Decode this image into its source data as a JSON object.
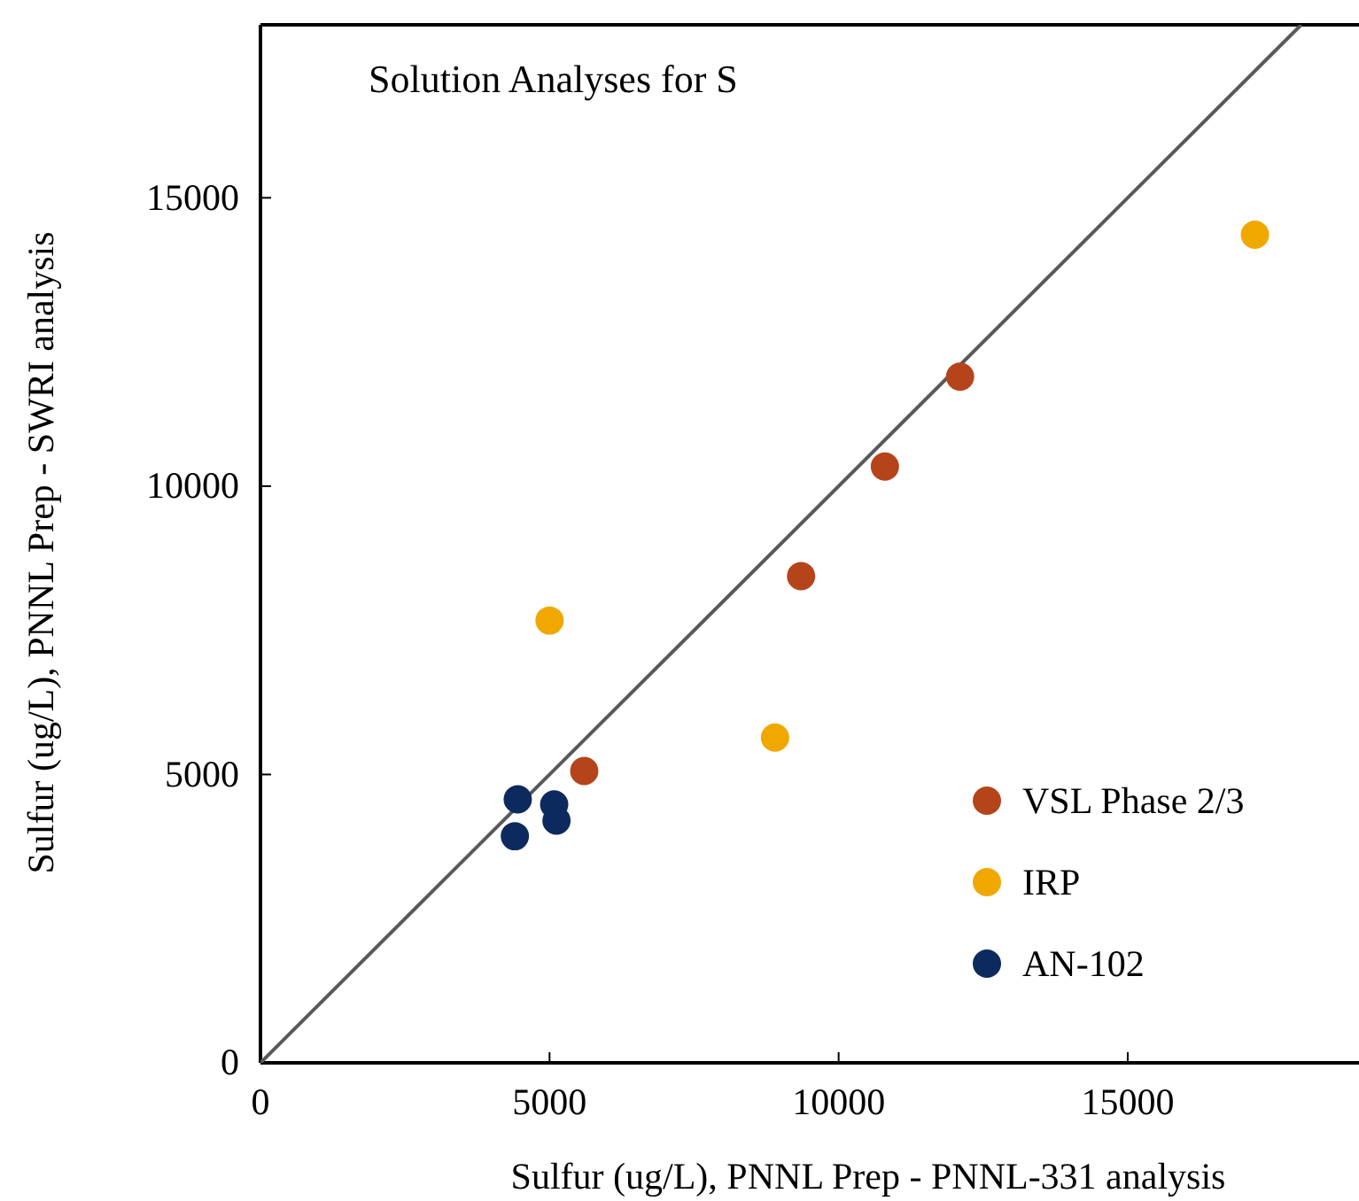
{
  "chart_data": {
    "type": "scatter",
    "title": "Solution Analyses for S",
    "xlabel": "Sulfur (ug/L), PNNL Prep - PNNL-331 analysis",
    "ylabel": "Sulfur  (ug/L), PNNL Prep - SWRI analysis",
    "xlim": [
      0,
      19000
    ],
    "ylim": [
      0,
      18000
    ],
    "xticks": [
      0,
      5000,
      10000,
      15000
    ],
    "yticks": [
      0,
      5000,
      10000,
      15000
    ],
    "grid": false,
    "legend": "bottom right",
    "marker": "circle",
    "series": [
      {
        "type": "line",
        "color": "#595959",
        "marker": "none",
        "x": [
          0,
          18000
        ],
        "values": [
          0,
          18000
        ]
      },
      {
        "name": "VSL Phase 2/3",
        "color": "#b5441a",
        "x": [
          5600,
          9350,
          10800,
          12100
        ],
        "values": [
          5060,
          8440,
          10340,
          11900
        ]
      },
      {
        "name": "IRP",
        "color": "#f0a800",
        "x": [
          5000,
          8900,
          17200
        ],
        "values": [
          7670,
          5640,
          14360
        ]
      },
      {
        "name": "AN-102",
        "color": "#0d2a5e",
        "x": [
          4450,
          5080,
          5120,
          4400
        ],
        "values": [
          4570,
          4480,
          4200,
          3930
        ]
      }
    ]
  }
}
